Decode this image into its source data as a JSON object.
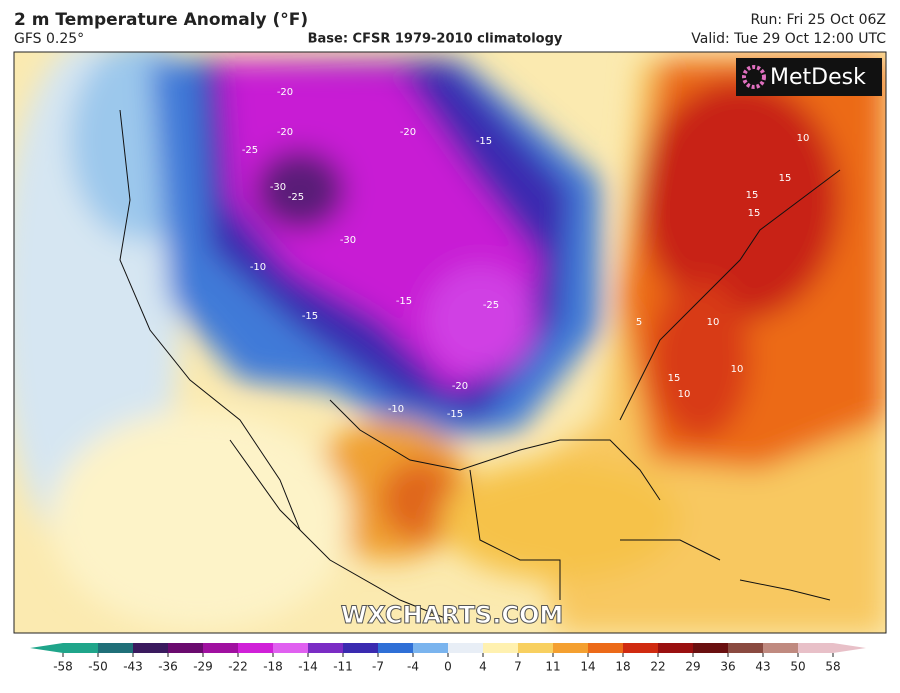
{
  "header": {
    "title": "2 m Temperature Anomaly (°F)",
    "model": "GFS 0.25°",
    "base": "Base: CFSR 1979-2010 climatology",
    "run": "Run: Fri 25 Oct 06Z",
    "valid": "Valid: Tue 29 Oct 12:00 UTC"
  },
  "brand": "MetDesk",
  "watermark": "WXCHARTS.COM",
  "contour_labels": [
    -20,
    -20,
    -25,
    -30,
    -25,
    -30,
    -10,
    -15,
    -15,
    -25,
    -20,
    -15,
    -10,
    -20,
    -15,
    15,
    15,
    15,
    10,
    10,
    15,
    10,
    10,
    5
  ],
  "colorbar": {
    "ticks": [
      -58,
      -50,
      -43,
      -36,
      -29,
      -22,
      -18,
      -14,
      -11,
      -7,
      -4,
      0,
      4,
      7,
      11,
      14,
      18,
      22,
      29,
      36,
      43,
      50,
      58
    ],
    "colors": [
      "#1fa58a",
      "#1f6f78",
      "#3a1a5e",
      "#6a0a6e",
      "#a010a0",
      "#d020d8",
      "#e060f0",
      "#7a2cc4",
      "#3a2ab0",
      "#2f6fd6",
      "#7ab4ee",
      "#e8eef6",
      "#fff1b0",
      "#f8d060",
      "#f4a030",
      "#ec6a18",
      "#d02a10",
      "#9a1010",
      "#6a1010",
      "#8a4a40",
      "#c08a80",
      "#e8c0c8"
    ]
  }
}
